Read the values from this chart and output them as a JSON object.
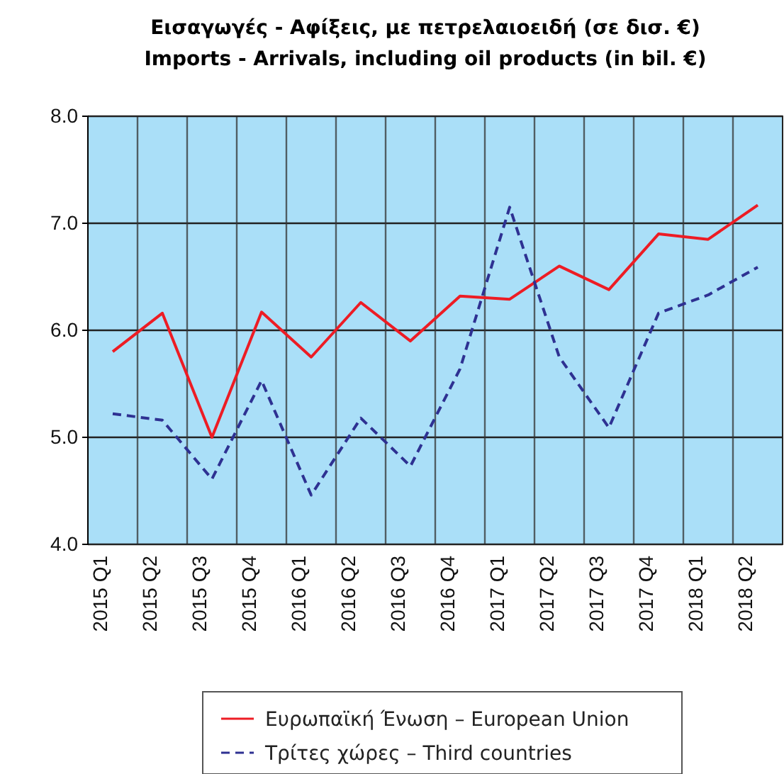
{
  "chart_data": {
    "type": "line",
    "title": "Εισαγωγές - Αφίξεις, με πετρελαιοειδή (σε δισ. €)",
    "subtitle": "Imports - Arrivals, including oil products (in bil. €)",
    "categories": [
      "2015 Q1",
      "2015 Q2",
      "2015 Q3",
      "2015 Q4",
      "2016 Q1",
      "2016 Q2",
      "2016 Q3",
      "2016 Q4",
      "2017 Q1",
      "2017 Q2",
      "2017 Q3",
      "2017 Q4",
      "2018 Q1",
      "2018 Q2"
    ],
    "series": [
      {
        "name": "Ευρωπαϊκή Ένωση – European Union",
        "color": "#ed1c24",
        "line_style": "solid",
        "values": [
          5.8,
          6.16,
          5.0,
          6.17,
          5.75,
          6.26,
          5.9,
          6.32,
          6.29,
          6.6,
          6.38,
          6.9,
          6.85,
          7.17
        ]
      },
      {
        "name": "Τρίτες χώρες – Third countries",
        "color": "#2e3192",
        "line_style": "dashed",
        "values": [
          5.22,
          5.16,
          4.61,
          5.53,
          4.46,
          5.18,
          4.73,
          5.64,
          7.15,
          5.75,
          5.09,
          6.16,
          6.33,
          6.59
        ]
      }
    ],
    "ylim": [
      4,
      8
    ],
    "yticks": [
      {
        "value": 4,
        "label": "4.0"
      },
      {
        "value": 5,
        "label": "5.0"
      },
      {
        "value": 6,
        "label": "6.0"
      },
      {
        "value": 7,
        "label": "7.0"
      },
      {
        "value": 8,
        "label": "8.0"
      }
    ],
    "grid": true,
    "legend": "bottom",
    "marker": "none"
  }
}
